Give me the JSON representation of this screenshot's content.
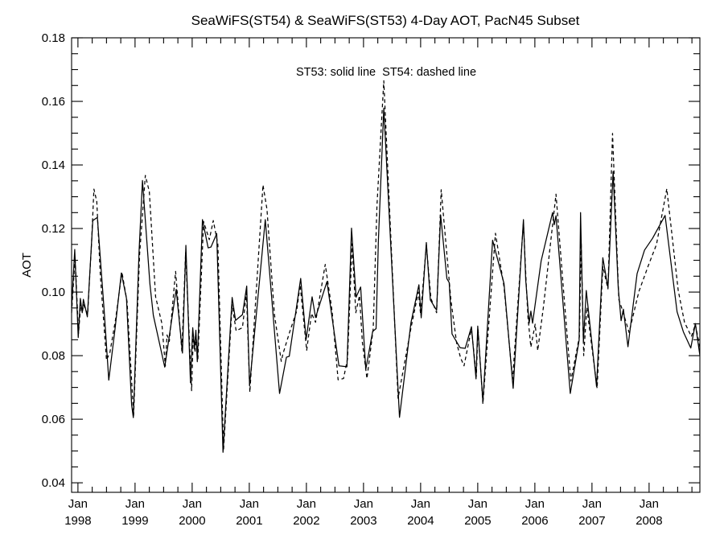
{
  "page": {
    "background_color": "#ffffff",
    "foreground_color": "#000000"
  },
  "chart_data": {
    "type": "line",
    "title": "SeaWiFS(ST54) & SeaWiFS(ST53) 4-Day AOT, PacN45 Subset",
    "annotation": "ST53: solid line  ST54: dashed line",
    "xlabel": "",
    "ylabel": "AOT",
    "grid": false,
    "legend_position": "top-center-inside",
    "x_axis": {
      "xlim": [
        1997.889,
        2008.889
      ],
      "major_tick_years": [
        1998,
        1999,
        2000,
        2001,
        2002,
        2003,
        2004,
        2005,
        2006,
        2007,
        2008
      ],
      "major_tick_label_line1": "Jan",
      "minor_tick_interval_years": 0.25
    },
    "y_axis": {
      "ylim": [
        0.037,
        0.18
      ],
      "major_ticks": [
        0.04,
        0.06,
        0.08,
        0.1,
        0.12,
        0.14,
        0.16,
        0.18
      ],
      "major_tick_labels": [
        "0.04",
        "0.06",
        "0.08",
        "0.10",
        "0.12",
        "0.14",
        "0.16",
        "0.18"
      ],
      "minor_tick_interval": 0.005
    },
    "series": [
      {
        "name": "ST53",
        "style": "solid",
        "color": "#000000",
        "points": [
          [
            1997.889,
            0.095
          ],
          [
            1997.944,
            0.1134
          ],
          [
            1998.005,
            0.0857
          ],
          [
            1998.042,
            0.098
          ],
          [
            1998.075,
            0.0935
          ],
          [
            1998.095,
            0.0977
          ],
          [
            1998.165,
            0.0922
          ],
          [
            1998.26,
            0.1225
          ],
          [
            1998.34,
            0.1235
          ],
          [
            1998.46,
            0.094
          ],
          [
            1998.54,
            0.0723
          ],
          [
            1998.65,
            0.0885
          ],
          [
            1998.76,
            0.106
          ],
          [
            1998.85,
            0.098
          ],
          [
            1998.94,
            0.0645
          ],
          [
            1998.97,
            0.0605
          ],
          [
            1999.07,
            0.1127
          ],
          [
            1999.13,
            0.1351
          ],
          [
            1999.26,
            0.1026
          ],
          [
            1999.32,
            0.0927
          ],
          [
            1999.52,
            0.0764
          ],
          [
            1999.72,
            0.1009
          ],
          [
            1999.83,
            0.0808
          ],
          [
            1999.89,
            0.1147
          ],
          [
            1999.97,
            0.0715
          ],
          [
            2000.01,
            0.0888
          ],
          [
            2000.04,
            0.0822
          ],
          [
            2000.065,
            0.088
          ],
          [
            2000.09,
            0.0781
          ],
          [
            2000.18,
            0.1228
          ],
          [
            2000.28,
            0.1139
          ],
          [
            2000.33,
            0.1142
          ],
          [
            2000.43,
            0.1184
          ],
          [
            2000.54,
            0.0496
          ],
          [
            2000.7,
            0.0983
          ],
          [
            2000.76,
            0.0911
          ],
          [
            2000.88,
            0.0929
          ],
          [
            2000.955,
            0.1019
          ],
          [
            2001.005,
            0.0705
          ],
          [
            2001.28,
            0.1228
          ],
          [
            2001.53,
            0.0681
          ],
          [
            2001.65,
            0.0795
          ],
          [
            2001.7,
            0.0798
          ],
          [
            2001.83,
            0.0957
          ],
          [
            2001.9,
            0.1043
          ],
          [
            2001.995,
            0.0851
          ],
          [
            2002.1,
            0.0985
          ],
          [
            2002.16,
            0.092
          ],
          [
            2002.36,
            0.1033
          ],
          [
            2002.57,
            0.0768
          ],
          [
            2002.71,
            0.0765
          ],
          [
            2002.79,
            0.1201
          ],
          [
            2002.87,
            0.0984
          ],
          [
            2002.95,
            0.1016
          ],
          [
            2003.04,
            0.0757
          ],
          [
            2003.16,
            0.0876
          ],
          [
            2003.22,
            0.0885
          ],
          [
            2003.26,
            0.116
          ],
          [
            2003.355,
            0.1579
          ],
          [
            2003.63,
            0.0606
          ],
          [
            2003.83,
            0.0903
          ],
          [
            2003.97,
            0.1023
          ],
          [
            2004.01,
            0.0919
          ],
          [
            2004.1,
            0.1156
          ],
          [
            2004.17,
            0.0975
          ],
          [
            2004.28,
            0.0943
          ],
          [
            2004.35,
            0.1243
          ],
          [
            2004.46,
            0.1042
          ],
          [
            2004.5,
            0.103
          ],
          [
            2004.55,
            0.0868
          ],
          [
            2004.69,
            0.0825
          ],
          [
            2004.78,
            0.0823
          ],
          [
            2004.89,
            0.0891
          ],
          [
            2004.97,
            0.0727
          ],
          [
            2005.0,
            0.0893
          ],
          [
            2005.09,
            0.0655
          ],
          [
            2005.26,
            0.1163
          ],
          [
            2005.46,
            0.1027
          ],
          [
            2005.62,
            0.0697
          ],
          [
            2005.8,
            0.1228
          ],
          [
            2005.84,
            0.1038
          ],
          [
            2005.9,
            0.0902
          ],
          [
            2005.93,
            0.094
          ],
          [
            2005.96,
            0.0902
          ],
          [
            2006.11,
            0.1098
          ],
          [
            2006.31,
            0.125
          ],
          [
            2006.34,
            0.1212
          ],
          [
            2006.37,
            0.124
          ],
          [
            2006.62,
            0.0681
          ],
          [
            2006.775,
            0.0849
          ],
          [
            2006.8,
            0.125
          ],
          [
            2006.85,
            0.0844
          ],
          [
            2006.9,
            0.1005
          ],
          [
            2007.08,
            0.0703
          ],
          [
            2007.19,
            0.1108
          ],
          [
            2007.28,
            0.1014
          ],
          [
            2007.37,
            0.1379
          ],
          [
            2007.46,
            0.1013
          ],
          [
            2007.51,
            0.091
          ],
          [
            2007.55,
            0.0946
          ],
          [
            2007.63,
            0.0828
          ],
          [
            2007.79,
            0.1058
          ],
          [
            2007.92,
            0.1132
          ],
          [
            2008.06,
            0.1169
          ],
          [
            2008.28,
            0.1241
          ],
          [
            2008.49,
            0.0938
          ],
          [
            2008.6,
            0.0875
          ],
          [
            2008.73,
            0.0824
          ],
          [
            2008.81,
            0.0901
          ],
          [
            2008.888,
            0.0802
          ]
        ]
      },
      {
        "name": "ST54",
        "style": "dashed",
        "color": "#000000",
        "points": [
          [
            1997.889,
            0.0935
          ],
          [
            1997.95,
            0.111
          ],
          [
            1998.01,
            0.087
          ],
          [
            1998.05,
            0.096
          ],
          [
            1998.08,
            0.094
          ],
          [
            1998.1,
            0.096
          ],
          [
            1998.17,
            0.093
          ],
          [
            1998.24,
            0.116
          ],
          [
            1998.28,
            0.1324
          ],
          [
            1998.33,
            0.1285
          ],
          [
            1998.39,
            0.106
          ],
          [
            1998.5,
            0.0786
          ],
          [
            1998.56,
            0.081
          ],
          [
            1998.66,
            0.0915
          ],
          [
            1998.77,
            0.1063
          ],
          [
            1998.86,
            0.097
          ],
          [
            1998.975,
            0.0612
          ],
          [
            1999.08,
            0.112
          ],
          [
            1999.18,
            0.1367
          ],
          [
            1999.25,
            0.1316
          ],
          [
            1999.36,
            0.0985
          ],
          [
            1999.47,
            0.0901
          ],
          [
            1999.53,
            0.0767
          ],
          [
            1999.56,
            0.0865
          ],
          [
            1999.6,
            0.0845
          ],
          [
            1999.71,
            0.1065
          ],
          [
            1999.82,
            0.0813
          ],
          [
            1999.885,
            0.1125
          ],
          [
            1999.99,
            0.069
          ],
          [
            2000.02,
            0.0865
          ],
          [
            2000.05,
            0.081
          ],
          [
            2000.07,
            0.0862
          ],
          [
            2000.1,
            0.079
          ],
          [
            2000.2,
            0.1222
          ],
          [
            2000.3,
            0.1165
          ],
          [
            2000.37,
            0.1225
          ],
          [
            2000.45,
            0.115
          ],
          [
            2000.55,
            0.0505
          ],
          [
            2000.7,
            0.096
          ],
          [
            2000.77,
            0.0878
          ],
          [
            2000.88,
            0.0888
          ],
          [
            2000.95,
            0.0998
          ],
          [
            2001.01,
            0.0685
          ],
          [
            2001.24,
            0.1337
          ],
          [
            2001.31,
            0.126
          ],
          [
            2001.44,
            0.093
          ],
          [
            2001.56,
            0.0782
          ],
          [
            2001.59,
            0.0806
          ],
          [
            2001.71,
            0.0876
          ],
          [
            2001.83,
            0.094
          ],
          [
            2001.89,
            0.1023
          ],
          [
            2002.005,
            0.0817
          ],
          [
            2002.09,
            0.0933
          ],
          [
            2002.16,
            0.0905
          ],
          [
            2002.33,
            0.1087
          ],
          [
            2002.45,
            0.094
          ],
          [
            2002.555,
            0.0724
          ],
          [
            2002.65,
            0.0728
          ],
          [
            2002.72,
            0.079
          ],
          [
            2002.8,
            0.1152
          ],
          [
            2002.865,
            0.0935
          ],
          [
            2002.93,
            0.0989
          ],
          [
            2002.98,
            0.0842
          ],
          [
            2003.06,
            0.0728
          ],
          [
            2003.17,
            0.0885
          ],
          [
            2003.235,
            0.127
          ],
          [
            2003.355,
            0.1665
          ],
          [
            2003.605,
            0.0666
          ],
          [
            2003.83,
            0.0886
          ],
          [
            2003.96,
            0.1
          ],
          [
            2004.0,
            0.093
          ],
          [
            2004.1,
            0.1148
          ],
          [
            2004.18,
            0.098
          ],
          [
            2004.28,
            0.0935
          ],
          [
            2004.36,
            0.1322
          ],
          [
            2004.53,
            0.0975
          ],
          [
            2004.63,
            0.084
          ],
          [
            2004.7,
            0.0793
          ],
          [
            2004.76,
            0.0768
          ],
          [
            2004.89,
            0.0885
          ],
          [
            2004.975,
            0.0735
          ],
          [
            2005.005,
            0.0885
          ],
          [
            2005.09,
            0.0648
          ],
          [
            2005.31,
            0.1185
          ],
          [
            2005.46,
            0.1016
          ],
          [
            2005.61,
            0.0724
          ],
          [
            2005.8,
            0.1218
          ],
          [
            2005.85,
            0.102
          ],
          [
            2005.88,
            0.092
          ],
          [
            2005.93,
            0.0827
          ],
          [
            2006.005,
            0.0899
          ],
          [
            2006.05,
            0.0816
          ],
          [
            2006.15,
            0.0953
          ],
          [
            2006.37,
            0.1308
          ],
          [
            2006.5,
            0.101
          ],
          [
            2006.63,
            0.072
          ],
          [
            2006.78,
            0.086
          ],
          [
            2006.81,
            0.1165
          ],
          [
            2006.855,
            0.08
          ],
          [
            2006.91,
            0.0952
          ],
          [
            2007.09,
            0.0697
          ],
          [
            2007.19,
            0.108
          ],
          [
            2007.28,
            0.101
          ],
          [
            2007.36,
            0.1499
          ],
          [
            2007.47,
            0.0977
          ],
          [
            2007.53,
            0.0945
          ],
          [
            2007.65,
            0.0873
          ],
          [
            2007.82,
            0.1001
          ],
          [
            2007.99,
            0.1085
          ],
          [
            2008.13,
            0.115
          ],
          [
            2008.31,
            0.1325
          ],
          [
            2008.51,
            0.1005
          ],
          [
            2008.62,
            0.0905
          ],
          [
            2008.74,
            0.086
          ],
          [
            2008.81,
            0.0898
          ],
          [
            2008.888,
            0.0827
          ]
        ]
      }
    ]
  }
}
